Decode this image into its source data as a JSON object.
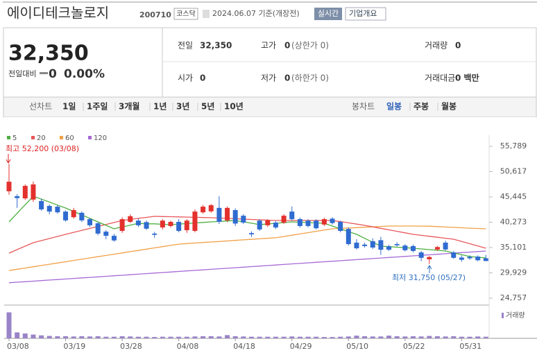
{
  "header": {
    "name": "에이디테크놀로지",
    "code": "200710",
    "market": "코스닥",
    "date": "2024.06.07 기준(개장전)",
    "realtime": "실시간",
    "company_info": "기업개요"
  },
  "quote": {
    "price": "32,350",
    "change_label": "전일대비",
    "change": "0",
    "change_rate": "0.00%",
    "table": [
      [
        {
          "label": "전일",
          "value": "32,350"
        },
        {
          "label": "고가",
          "value": "0",
          "note": "(상한가 0)"
        },
        {
          "label": "거래량",
          "value": "0"
        }
      ],
      [
        {
          "label": "시가",
          "value": "0"
        },
        {
          "label": "저가",
          "value": "0",
          "note": "(하한가 0)"
        },
        {
          "label": "거래대금",
          "value": "0 백만"
        }
      ]
    ]
  },
  "tabs": {
    "line_label": "선차트",
    "line": [
      "1일",
      "1주일",
      "3개월",
      "1년",
      "3년",
      "5년",
      "10년"
    ],
    "candle_label": "봉차트",
    "candle": [
      "일봉",
      "주봉",
      "월봉"
    ]
  },
  "chart_data": {
    "type": "candlestick",
    "categories": [
      "03/08",
      null,
      null,
      null,
      null,
      null,
      null,
      "03/19",
      null,
      null,
      null,
      null,
      null,
      null,
      "03/28",
      null,
      null,
      null,
      null,
      null,
      null,
      "04/08",
      null,
      null,
      null,
      null,
      null,
      null,
      "04/18",
      null,
      null,
      null,
      null,
      null,
      null,
      "04/29",
      null,
      null,
      null,
      null,
      null,
      null,
      "05/10",
      null,
      null,
      null,
      null,
      null,
      null,
      "05/22",
      null,
      null,
      null,
      null,
      null,
      null,
      "05/31",
      null,
      null,
      null
    ],
    "open": [
      46600,
      45600,
      45150,
      44900,
      44600,
      43600,
      43450,
      42450,
      41300,
      42200,
      40900,
      40050,
      38350,
      37500,
      38500,
      40350,
      40600,
      40300,
      37950,
      39200,
      39500,
      40350,
      38650,
      38500,
      42300,
      42500,
      43200,
      40650,
      42750,
      41600,
      38050,
      40600,
      39650,
      40200,
      40200,
      42450,
      40900,
      40600,
      40600,
      39800,
      41000,
      40350,
      38900,
      36100,
      35700,
      36400,
      36600,
      35350,
      35800,
      35500,
      35400,
      34100,
      32700,
      34700,
      36100,
      34100,
      33050,
      33200,
      33250,
      32900
    ],
    "high": [
      52200,
      46000,
      48000,
      48600,
      45100,
      43900,
      43800,
      42700,
      43200,
      42500,
      41200,
      40300,
      38700,
      37900,
      41300,
      41900,
      41000,
      40600,
      38300,
      40900,
      40600,
      40900,
      40900,
      42900,
      43800,
      44000,
      45600,
      43500,
      43100,
      41900,
      38400,
      40900,
      40900,
      40500,
      41900,
      43500,
      41200,
      40900,
      40900,
      41200,
      41300,
      40600,
      39200,
      36800,
      36100,
      37000,
      37300,
      35700,
      36200,
      35800,
      35700,
      34400,
      33400,
      35400,
      36500,
      34400,
      33500,
      33500,
      33500,
      33600
    ],
    "low": [
      45900,
      43200,
      44800,
      44400,
      42600,
      41900,
      42000,
      40400,
      41000,
      40300,
      39300,
      37600,
      36800,
      36300,
      38100,
      40100,
      39300,
      38700,
      37100,
      38800,
      39200,
      38200,
      38100,
      38200,
      42000,
      42200,
      39900,
      40300,
      39500,
      39900,
      37300,
      38500,
      39300,
      38900,
      39900,
      40600,
      39200,
      39200,
      38800,
      39500,
      39800,
      38200,
      35500,
      34700,
      35100,
      34800,
      33600,
      34400,
      35300,
      34300,
      34100,
      32300,
      31750,
      34400,
      34500,
      32800,
      32200,
      32600,
      32300,
      32300
    ],
    "close": [
      48550,
      45200,
      47700,
      48000,
      42900,
      42450,
      42300,
      40650,
      42750,
      40650,
      39650,
      37950,
      37500,
      36550,
      40900,
      41500,
      39650,
      38950,
      37700,
      40600,
      40350,
      38500,
      40600,
      42450,
      43450,
      43750,
      40350,
      43200,
      40000,
      40200,
      37800,
      38800,
      40650,
      39200,
      41600,
      40900,
      39500,
      39500,
      39050,
      40900,
      40100,
      38500,
      35800,
      34950,
      35400,
      35100,
      34650,
      34650,
      35550,
      34550,
      34400,
      33000,
      33150,
      35200,
      34700,
      33000,
      32600,
      32900,
      32500,
      32350
    ],
    "up_color": "#e3312d",
    "down_color": "#2f6bd0",
    "series": [
      {
        "name": "5",
        "color": "#4caf3f",
        "values": [
          40340,
          42090,
          43840,
          45590,
          44990,
          44390,
          43780,
          43180,
          42470,
          41760,
          41050,
          40340,
          39640,
          38930,
          39310,
          39680,
          40060,
          39950,
          39950,
          39850,
          39780,
          39890,
          40000,
          40120,
          40230,
          40340,
          40430,
          40530,
          40630,
          40350,
          40070,
          39780,
          39920,
          40060,
          40200,
          40340,
          40270,
          40200,
          40130,
          40060,
          39490,
          38930,
          38360,
          37790,
          36990,
          36180,
          35380,
          35280,
          35170,
          35070,
          34960,
          34820,
          34680,
          34530,
          34390,
          34010,
          33640,
          33260,
          33120,
          32980
        ]
      },
      {
        "name": "20",
        "color": "#e8575a",
        "values": [
          33960,
          34670,
          35380,
          36090,
          36520,
          36940,
          37370,
          37790,
          38200,
          38600,
          39010,
          39410,
          39820,
          40220,
          40630,
          40840,
          41060,
          41270,
          41480,
          41440,
          41400,
          41360,
          41320,
          41280,
          41240,
          41200,
          41130,
          41060,
          40990,
          40910,
          40840,
          40770,
          40700,
          40630,
          40630,
          40630,
          40630,
          40630,
          40630,
          40630,
          40630,
          40380,
          40140,
          39890,
          39640,
          39330,
          39020,
          38720,
          38410,
          38100,
          37790,
          37590,
          37400,
          37200,
          37000,
          36800,
          36340,
          35880,
          35420,
          34960
        ]
      },
      {
        "name": "60",
        "color": "#f2a046",
        "values": [
          30400,
          30660,
          30910,
          31170,
          31430,
          31690,
          31940,
          32200,
          32460,
          32710,
          32970,
          33230,
          33490,
          33740,
          34000,
          34260,
          34510,
          34770,
          35030,
          35290,
          35540,
          35800,
          35910,
          36020,
          36130,
          36230,
          36340,
          36450,
          36560,
          36670,
          36780,
          36880,
          36990,
          37100,
          37360,
          37620,
          37880,
          38150,
          38410,
          38670,
          38930,
          39010,
          39090,
          39170,
          39250,
          39330,
          39410,
          39490,
          39500,
          39500,
          39500,
          39480,
          39460,
          39380,
          39300,
          39220,
          39140,
          39060,
          39000,
          38930
        ]
      },
      {
        "name": "120",
        "color": "#a669d6",
        "values": [
          27900,
          28010,
          28120,
          28230,
          28340,
          28450,
          28560,
          28670,
          28780,
          28890,
          29000,
          29110,
          29220,
          29330,
          29440,
          29550,
          29660,
          29770,
          29880,
          29990,
          30100,
          30210,
          30320,
          30430,
          30540,
          30650,
          30760,
          30870,
          30980,
          31090,
          31200,
          31310,
          31420,
          31530,
          31640,
          31750,
          31860,
          31970,
          32080,
          32190,
          32300,
          32410,
          32520,
          32630,
          32740,
          32850,
          32960,
          33070,
          33180,
          33290,
          33400,
          33510,
          33620,
          33730,
          33840,
          33950,
          34060,
          34170,
          34280,
          34390
        ]
      }
    ],
    "volume": {
      "name": "거래량",
      "color": "#9a84c8",
      "ylim": [
        0,
        550000
      ],
      "values": [
        480000,
        110000,
        90000,
        70000,
        55000,
        45000,
        40000,
        40000,
        35000,
        40000,
        35000,
        40000,
        30000,
        30000,
        40000,
        35000,
        30000,
        30000,
        25000,
        30000,
        30000,
        30000,
        30000,
        35000,
        40000,
        40000,
        35000,
        60000,
        40000,
        35000,
        30000,
        30000,
        30000,
        30000,
        30000,
        35000,
        30000,
        30000,
        30000,
        25000,
        25000,
        30000,
        35000,
        50000,
        40000,
        35000,
        35000,
        50000,
        40000,
        35000,
        40000,
        35000,
        45000,
        40000,
        35000,
        40000,
        30000,
        30000,
        35000,
        30000
      ]
    },
    "ylim": [
      24757,
      55789
    ],
    "yticks": [
      {
        "value": 24757,
        "label": "24,757"
      },
      {
        "value": 29929,
        "label": "29,929"
      },
      {
        "value": 35101,
        "label": "35,101"
      },
      {
        "value": 40273,
        "label": "40,273"
      },
      {
        "value": 45445,
        "label": "45,445"
      },
      {
        "value": 50617,
        "label": "50,617"
      },
      {
        "value": 55789,
        "label": "55,789"
      }
    ],
    "annotations": [
      "최고 52,200 (03/08)",
      "최저 31,750 (05/27)"
    ]
  }
}
